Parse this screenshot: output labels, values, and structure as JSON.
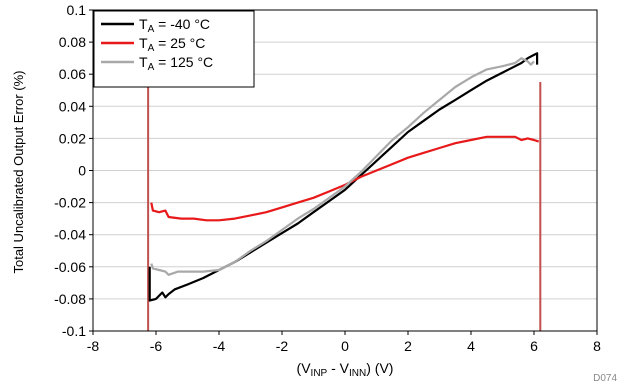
{
  "chart_data": {
    "type": "line",
    "xlabel": "(V",
    "xlabel_parts": {
      "open": "(V",
      "sub1": "INP",
      "mid": " - V",
      "sub2": "INN",
      "close": ") (V)"
    },
    "ylabel": "Total Uncalibrated Output Error (%)",
    "xlim": [
      -8,
      8
    ],
    "ylim": [
      -0.1,
      0.1
    ],
    "x_ticks": [
      "-8",
      "-6",
      "-4",
      "-2",
      "0",
      "2",
      "4",
      "6",
      "8"
    ],
    "y_ticks": [
      "0.1",
      "0.08",
      "0.06",
      "0.04",
      "0.02",
      "0",
      "-0.02",
      "-0.04",
      "-0.06",
      "-0.08",
      "-0.1"
    ],
    "grid": "horizontal",
    "legend_position": "top-left",
    "watermark": "D074",
    "series": [
      {
        "name": "T",
        "legend": {
          "prefix": "T",
          "sub": "A",
          "suffix": " = -40 °C"
        },
        "color": "#000000",
        "points": [
          [
            -6.2,
            -0.06
          ],
          [
            -6.2,
            -0.081
          ],
          [
            -6.0,
            -0.08
          ],
          [
            -5.8,
            -0.076
          ],
          [
            -5.7,
            -0.079
          ],
          [
            -5.6,
            -0.077
          ],
          [
            -5.4,
            -0.074
          ],
          [
            -5.0,
            -0.071
          ],
          [
            -4.5,
            -0.067
          ],
          [
            -4.0,
            -0.062
          ],
          [
            -3.5,
            -0.057
          ],
          [
            -3.0,
            -0.051
          ],
          [
            -2.5,
            -0.045
          ],
          [
            -2.0,
            -0.039
          ],
          [
            -1.5,
            -0.033
          ],
          [
            -1.0,
            -0.026
          ],
          [
            -0.5,
            -0.019
          ],
          [
            0.0,
            -0.012
          ],
          [
            0.5,
            -0.003
          ],
          [
            1.0,
            0.006
          ],
          [
            1.5,
            0.015
          ],
          [
            2.0,
            0.024
          ],
          [
            2.5,
            0.031
          ],
          [
            3.0,
            0.038
          ],
          [
            3.5,
            0.044
          ],
          [
            4.0,
            0.05
          ],
          [
            4.5,
            0.056
          ],
          [
            5.0,
            0.061
          ],
          [
            5.3,
            0.064
          ],
          [
            5.6,
            0.067
          ],
          [
            5.8,
            0.07
          ],
          [
            6.0,
            0.072
          ],
          [
            6.1,
            0.073
          ],
          [
            6.1,
            0.066
          ]
        ]
      },
      {
        "name": "T",
        "legend": {
          "prefix": "T",
          "sub": "A",
          "suffix": " = 25 °C"
        },
        "color": "#e8191a",
        "points": [
          [
            -6.15,
            -0.02
          ],
          [
            -6.1,
            -0.025
          ],
          [
            -5.9,
            -0.026
          ],
          [
            -5.7,
            -0.025
          ],
          [
            -5.6,
            -0.029
          ],
          [
            -5.2,
            -0.03
          ],
          [
            -4.8,
            -0.03
          ],
          [
            -4.4,
            -0.031
          ],
          [
            -4.0,
            -0.031
          ],
          [
            -3.5,
            -0.03
          ],
          [
            -3.0,
            -0.028
          ],
          [
            -2.5,
            -0.026
          ],
          [
            -2.0,
            -0.023
          ],
          [
            -1.5,
            -0.02
          ],
          [
            -1.0,
            -0.017
          ],
          [
            -0.5,
            -0.013
          ],
          [
            0.0,
            -0.009
          ],
          [
            0.5,
            -0.004
          ],
          [
            1.0,
            0.0
          ],
          [
            1.5,
            0.004
          ],
          [
            2.0,
            0.008
          ],
          [
            2.5,
            0.011
          ],
          [
            3.0,
            0.014
          ],
          [
            3.5,
            0.017
          ],
          [
            4.0,
            0.019
          ],
          [
            4.5,
            0.021
          ],
          [
            5.0,
            0.021
          ],
          [
            5.4,
            0.021
          ],
          [
            5.6,
            0.019
          ],
          [
            5.8,
            0.02
          ],
          [
            6.0,
            0.019
          ],
          [
            6.15,
            0.018
          ]
        ]
      },
      {
        "name": "T",
        "legend": {
          "prefix": "T",
          "sub": "A",
          "suffix": " = 125 °C"
        },
        "color": "#a9a9a9",
        "points": [
          [
            -6.15,
            -0.058
          ],
          [
            -6.1,
            -0.061
          ],
          [
            -5.9,
            -0.062
          ],
          [
            -5.7,
            -0.063
          ],
          [
            -5.6,
            -0.065
          ],
          [
            -5.3,
            -0.063
          ],
          [
            -5.0,
            -0.063
          ],
          [
            -4.5,
            -0.063
          ],
          [
            -4.0,
            -0.062
          ],
          [
            -3.5,
            -0.057
          ],
          [
            -3.0,
            -0.05
          ],
          [
            -2.5,
            -0.044
          ],
          [
            -2.0,
            -0.037
          ],
          [
            -1.5,
            -0.03
          ],
          [
            -1.0,
            -0.024
          ],
          [
            -0.5,
            -0.017
          ],
          [
            0.0,
            -0.01
          ],
          [
            0.5,
            -0.001
          ],
          [
            1.0,
            0.009
          ],
          [
            1.5,
            0.019
          ],
          [
            2.0,
            0.027
          ],
          [
            2.5,
            0.036
          ],
          [
            3.0,
            0.044
          ],
          [
            3.5,
            0.052
          ],
          [
            4.0,
            0.058
          ],
          [
            4.5,
            0.063
          ],
          [
            5.0,
            0.065
          ],
          [
            5.4,
            0.067
          ],
          [
            5.6,
            0.07
          ],
          [
            5.8,
            0.068
          ],
          [
            5.9,
            0.066
          ],
          [
            6.0,
            0.068
          ]
        ]
      }
    ],
    "edge_markers": [
      {
        "x": -6.25,
        "color": "#c0504d"
      },
      {
        "x": 6.2,
        "color": "#c0504d"
      }
    ]
  }
}
